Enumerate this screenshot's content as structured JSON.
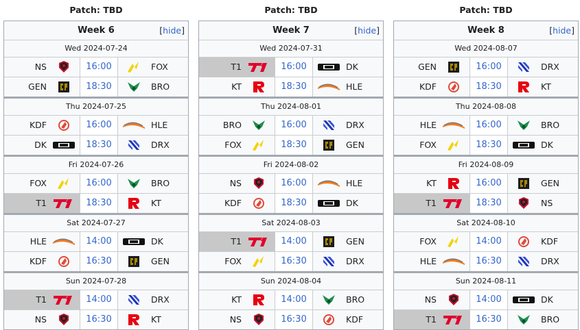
{
  "columns": [
    {
      "patch": "Patch: TBD",
      "week": "Week 6",
      "hide": "hide",
      "days": [
        {
          "date": "Wed 2024-07-24",
          "matches": [
            {
              "team1": "NS",
              "time": "16:00",
              "team2": "FOX",
              "winner": 0
            },
            {
              "team1": "GEN",
              "time": "18:30",
              "team2": "BRO",
              "winner": 0
            }
          ]
        },
        {
          "date": "Thu 2024-07-25",
          "matches": [
            {
              "team1": "KDF",
              "time": "16:00",
              "team2": "HLE",
              "winner": 0
            },
            {
              "team1": "DK",
              "time": "18:30",
              "team2": "DRX",
              "winner": 0
            }
          ]
        },
        {
          "date": "Fri 2024-07-26",
          "matches": [
            {
              "team1": "FOX",
              "time": "16:00",
              "team2": "BRO",
              "winner": 0
            },
            {
              "team1": "T1",
              "time": "18:30",
              "team2": "KT",
              "winner": 1
            }
          ]
        },
        {
          "date": "Sat 2024-07-27",
          "matches": [
            {
              "team1": "HLE",
              "time": "14:00",
              "team2": "DK",
              "winner": 0
            },
            {
              "team1": "KDF",
              "time": "16:30",
              "team2": "GEN",
              "winner": 0
            }
          ]
        },
        {
          "date": "Sun 2024-07-28",
          "matches": [
            {
              "team1": "T1",
              "time": "14:00",
              "team2": "DRX",
              "winner": 1
            },
            {
              "team1": "NS",
              "time": "16:30",
              "team2": "KT",
              "winner": 0
            }
          ]
        }
      ]
    },
    {
      "patch": "Patch: TBD",
      "week": "Week 7",
      "hide": "hide",
      "days": [
        {
          "date": "Wed 2024-07-31",
          "matches": [
            {
              "team1": "T1",
              "time": "16:00",
              "team2": "DK",
              "winner": 1
            },
            {
              "team1": "KT",
              "time": "18:30",
              "team2": "HLE",
              "winner": 0
            }
          ]
        },
        {
          "date": "Thu 2024-08-01",
          "matches": [
            {
              "team1": "BRO",
              "time": "16:00",
              "team2": "DRX",
              "winner": 0
            },
            {
              "team1": "FOX",
              "time": "18:30",
              "team2": "GEN",
              "winner": 0
            }
          ]
        },
        {
          "date": "Fri 2024-08-02",
          "matches": [
            {
              "team1": "NS",
              "time": "16:00",
              "team2": "HLE",
              "winner": 0
            },
            {
              "team1": "KDF",
              "time": "18:30",
              "team2": "DK",
              "winner": 0
            }
          ]
        },
        {
          "date": "Sat 2024-08-03",
          "matches": [
            {
              "team1": "T1",
              "time": "14:00",
              "team2": "GEN",
              "winner": 1
            },
            {
              "team1": "FOX",
              "time": "16:30",
              "team2": "DRX",
              "winner": 0
            }
          ]
        },
        {
          "date": "Sun 2024-08-04",
          "matches": [
            {
              "team1": "KT",
              "time": "14:00",
              "team2": "BRO",
              "winner": 0
            },
            {
              "team1": "NS",
              "time": "16:30",
              "team2": "KDF",
              "winner": 0
            }
          ]
        }
      ]
    },
    {
      "patch": "Patch: TBD",
      "week": "Week 8",
      "hide": "hide",
      "days": [
        {
          "date": "Wed 2024-08-07",
          "matches": [
            {
              "team1": "GEN",
              "time": "16:00",
              "team2": "DRX",
              "winner": 0
            },
            {
              "team1": "KDF",
              "time": "18:30",
              "team2": "KT",
              "winner": 0
            }
          ]
        },
        {
          "date": "Thu 2024-08-08",
          "matches": [
            {
              "team1": "HLE",
              "time": "16:00",
              "team2": "BRO",
              "winner": 0
            },
            {
              "team1": "FOX",
              "time": "18:30",
              "team2": "DK",
              "winner": 0
            }
          ]
        },
        {
          "date": "Fri 2024-08-09",
          "matches": [
            {
              "team1": "KT",
              "time": "16:00",
              "team2": "GEN",
              "winner": 0
            },
            {
              "team1": "T1",
              "time": "18:30",
              "team2": "NS",
              "winner": 1
            }
          ]
        },
        {
          "date": "Sat 2024-08-10",
          "matches": [
            {
              "team1": "FOX",
              "time": "14:00",
              "team2": "KDF",
              "winner": 0
            },
            {
              "team1": "HLE",
              "time": "16:30",
              "team2": "DRX",
              "winner": 0
            }
          ]
        },
        {
          "date": "Sun 2024-08-11",
          "matches": [
            {
              "team1": "NS",
              "time": "14:00",
              "team2": "DK",
              "winner": 0
            },
            {
              "team1": "T1",
              "time": "16:30",
              "team2": "BRO",
              "winner": 1
            }
          ]
        }
      ]
    }
  ],
  "colors": {
    "link": "#3366cc",
    "winner_bg": "#c8c8c8",
    "box_bg": "#f8f9fa",
    "border": "#a2a9b1"
  }
}
